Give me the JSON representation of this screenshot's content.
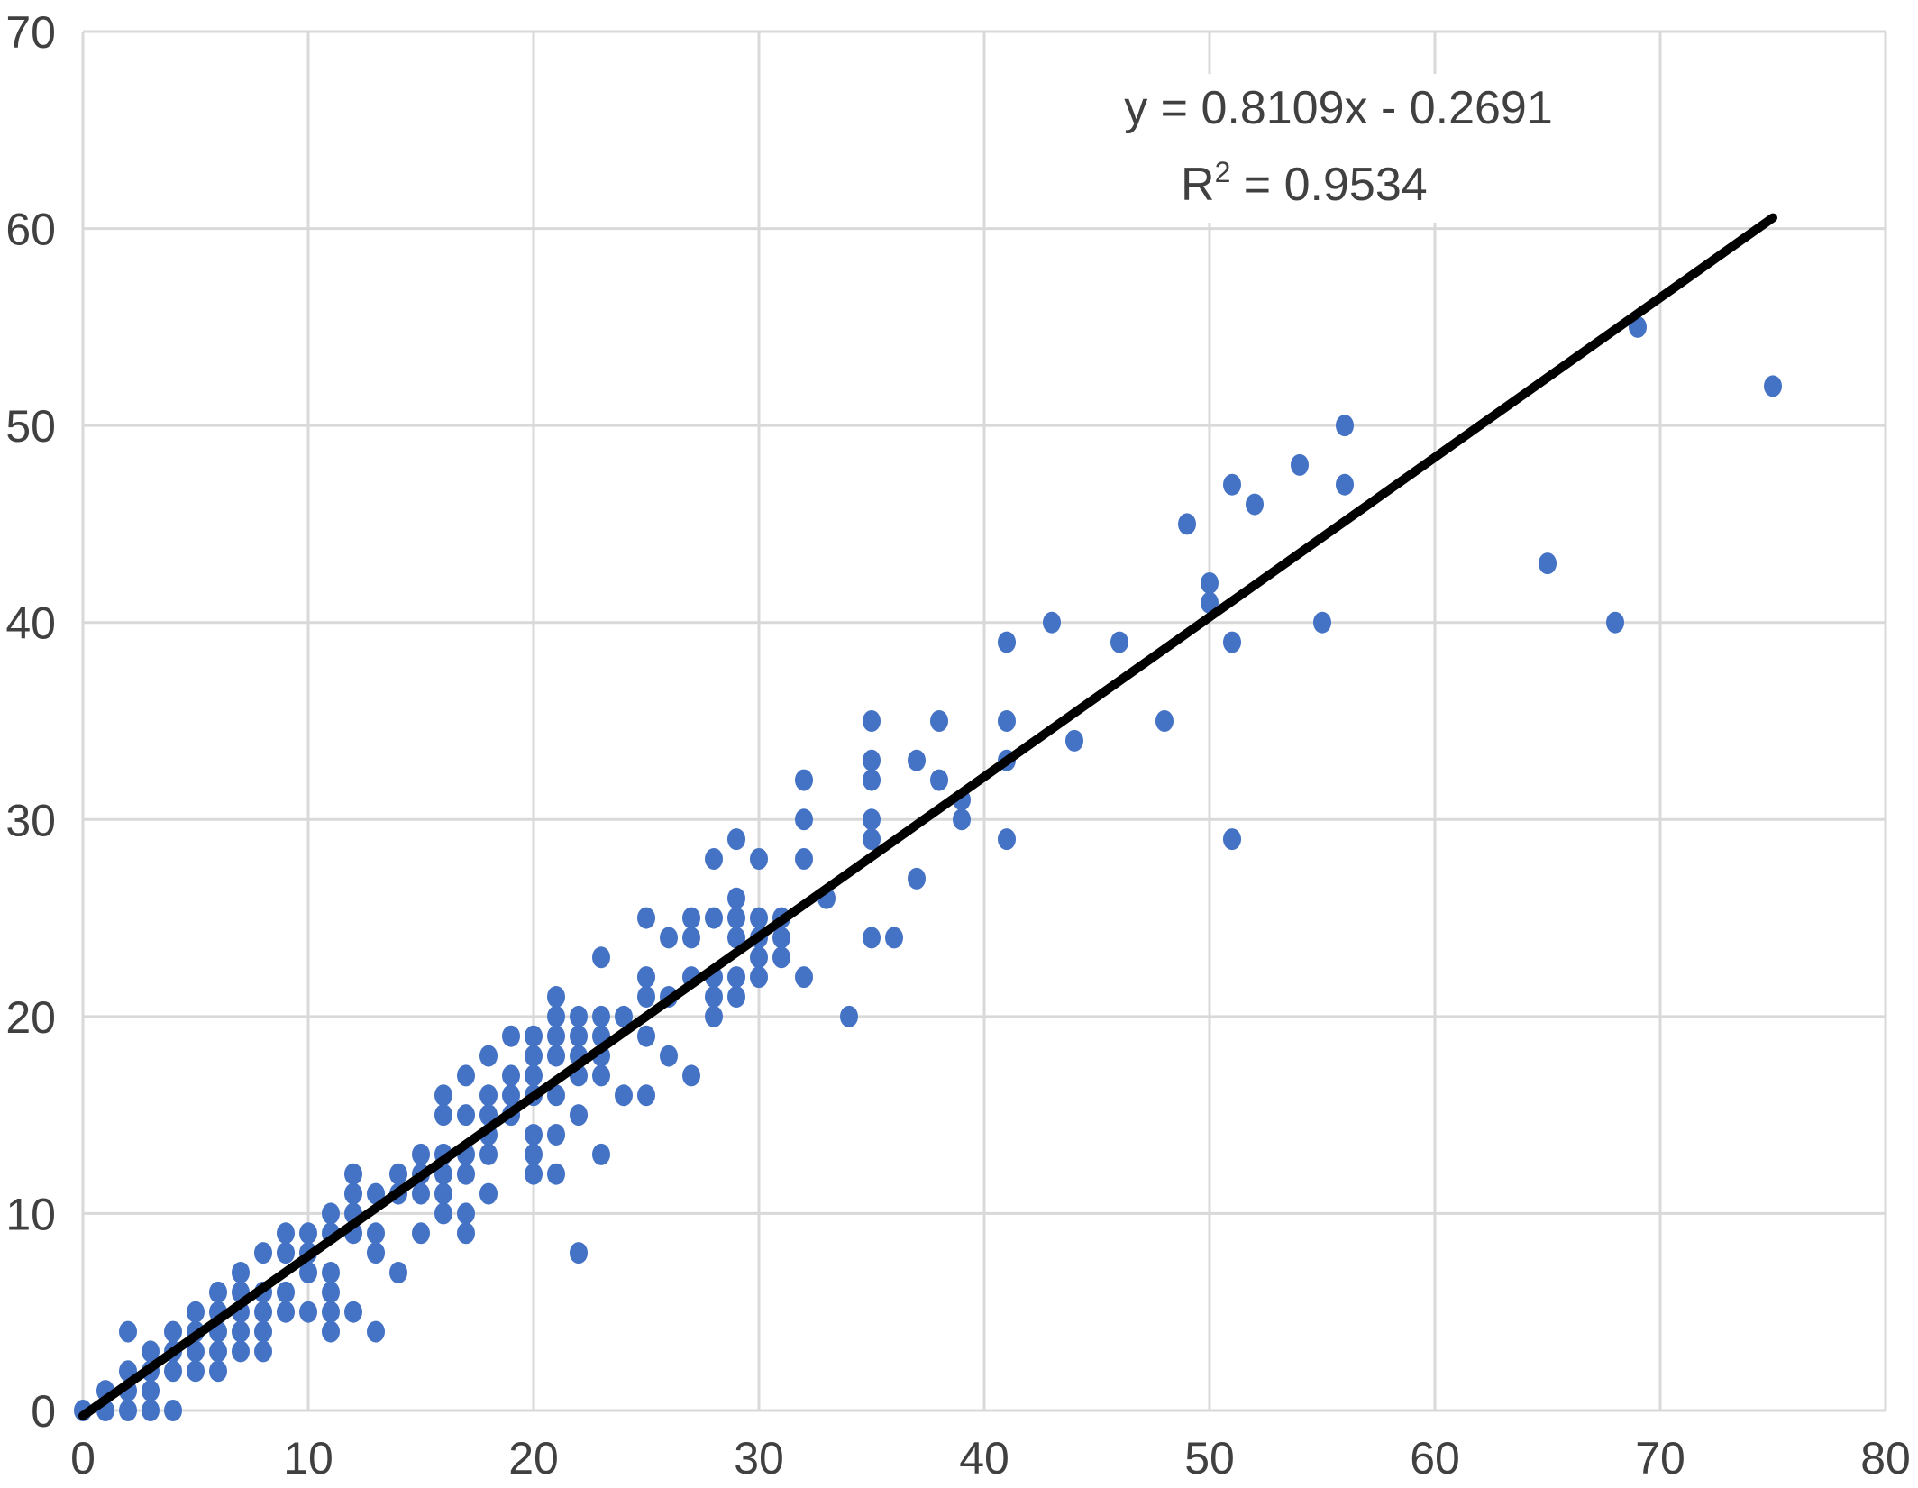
{
  "chart_data": {
    "type": "scatter",
    "xlim": [
      0,
      80
    ],
    "ylim": [
      0,
      70
    ],
    "x_ticks": [
      0,
      10,
      20,
      30,
      40,
      50,
      60,
      70,
      80
    ],
    "y_ticks": [
      0,
      10,
      20,
      30,
      40,
      50,
      60,
      70
    ],
    "grid": true,
    "legend": "none",
    "point_color": "#4472c4",
    "line_color": "#000000",
    "trendline": {
      "slope": 0.8109,
      "intercept": -0.2691,
      "x_range": [
        0,
        75
      ],
      "equation": "y = 0.8109x - 0.2691",
      "r_squared_prefix": "R",
      "r_squared_sup": "2",
      "r_squared_value": " = 0.9534"
    },
    "points": [
      [
        0,
        0
      ],
      [
        1,
        0
      ],
      [
        1,
        1
      ],
      [
        2,
        0
      ],
      [
        2,
        1
      ],
      [
        2,
        2
      ],
      [
        2,
        4
      ],
      [
        3,
        0
      ],
      [
        3,
        1
      ],
      [
        3,
        2
      ],
      [
        3,
        3
      ],
      [
        4,
        0
      ],
      [
        4,
        2
      ],
      [
        4,
        3
      ],
      [
        4,
        4
      ],
      [
        5,
        2
      ],
      [
        5,
        3
      ],
      [
        5,
        4
      ],
      [
        5,
        5
      ],
      [
        6,
        2
      ],
      [
        6,
        3
      ],
      [
        6,
        4
      ],
      [
        6,
        5
      ],
      [
        6,
        6
      ],
      [
        7,
        3
      ],
      [
        7,
        4
      ],
      [
        7,
        5
      ],
      [
        7,
        6
      ],
      [
        7,
        7
      ],
      [
        8,
        3
      ],
      [
        8,
        4
      ],
      [
        8,
        5
      ],
      [
        8,
        6
      ],
      [
        8,
        8
      ],
      [
        9,
        5
      ],
      [
        9,
        6
      ],
      [
        9,
        8
      ],
      [
        9,
        9
      ],
      [
        10,
        5
      ],
      [
        10,
        7
      ],
      [
        10,
        8
      ],
      [
        10,
        9
      ],
      [
        11,
        4
      ],
      [
        11,
        5
      ],
      [
        11,
        6
      ],
      [
        11,
        7
      ],
      [
        11,
        9
      ],
      [
        11,
        10
      ],
      [
        12,
        5
      ],
      [
        12,
        9
      ],
      [
        12,
        10
      ],
      [
        12,
        11
      ],
      [
        12,
        12
      ],
      [
        13,
        4
      ],
      [
        13,
        8
      ],
      [
        13,
        9
      ],
      [
        13,
        11
      ],
      [
        14,
        7
      ],
      [
        14,
        11
      ],
      [
        14,
        12
      ],
      [
        15,
        9
      ],
      [
        15,
        11
      ],
      [
        15,
        12
      ],
      [
        15,
        13
      ],
      [
        16,
        10
      ],
      [
        16,
        11
      ],
      [
        16,
        12
      ],
      [
        16,
        13
      ],
      [
        16,
        15
      ],
      [
        16,
        16
      ],
      [
        17,
        9
      ],
      [
        17,
        10
      ],
      [
        17,
        12
      ],
      [
        17,
        13
      ],
      [
        17,
        15
      ],
      [
        17,
        17
      ],
      [
        18,
        11
      ],
      [
        18,
        13
      ],
      [
        18,
        14
      ],
      [
        18,
        15
      ],
      [
        18,
        16
      ],
      [
        18,
        18
      ],
      [
        19,
        15
      ],
      [
        19,
        16
      ],
      [
        19,
        17
      ],
      [
        19,
        19
      ],
      [
        20,
        12
      ],
      [
        20,
        13
      ],
      [
        20,
        14
      ],
      [
        20,
        16
      ],
      [
        20,
        17
      ],
      [
        20,
        18
      ],
      [
        20,
        19
      ],
      [
        21,
        12
      ],
      [
        21,
        14
      ],
      [
        21,
        16
      ],
      [
        21,
        18
      ],
      [
        21,
        19
      ],
      [
        21,
        20
      ],
      [
        21,
        21
      ],
      [
        22,
        8
      ],
      [
        22,
        15
      ],
      [
        22,
        17
      ],
      [
        22,
        18
      ],
      [
        22,
        19
      ],
      [
        22,
        20
      ],
      [
        23,
        13
      ],
      [
        23,
        17
      ],
      [
        23,
        18
      ],
      [
        23,
        19
      ],
      [
        23,
        20
      ],
      [
        23,
        23
      ],
      [
        24,
        16
      ],
      [
        24,
        20
      ],
      [
        25,
        16
      ],
      [
        25,
        19
      ],
      [
        25,
        21
      ],
      [
        25,
        22
      ],
      [
        25,
        25
      ],
      [
        26,
        18
      ],
      [
        26,
        21
      ],
      [
        26,
        24
      ],
      [
        27,
        17
      ],
      [
        27,
        22
      ],
      [
        27,
        24
      ],
      [
        27,
        25
      ],
      [
        28,
        20
      ],
      [
        28,
        21
      ],
      [
        28,
        22
      ],
      [
        28,
        25
      ],
      [
        28,
        28
      ],
      [
        29,
        21
      ],
      [
        29,
        22
      ],
      [
        29,
        24
      ],
      [
        29,
        25
      ],
      [
        29,
        26
      ],
      [
        29,
        29
      ],
      [
        30,
        22
      ],
      [
        30,
        23
      ],
      [
        30,
        24
      ],
      [
        30,
        25
      ],
      [
        30,
        28
      ],
      [
        31,
        23
      ],
      [
        31,
        24
      ],
      [
        31,
        25
      ],
      [
        32,
        22
      ],
      [
        32,
        28
      ],
      [
        32,
        30
      ],
      [
        32,
        32
      ],
      [
        33,
        26
      ],
      [
        34,
        20
      ],
      [
        35,
        24
      ],
      [
        35,
        29
      ],
      [
        35,
        30
      ],
      [
        35,
        32
      ],
      [
        35,
        33
      ],
      [
        35,
        35
      ],
      [
        36,
        24
      ],
      [
        37,
        27
      ],
      [
        37,
        33
      ],
      [
        38,
        32
      ],
      [
        38,
        35
      ],
      [
        39,
        30
      ],
      [
        39,
        31
      ],
      [
        41,
        29
      ],
      [
        41,
        33
      ],
      [
        41,
        35
      ],
      [
        41,
        39
      ],
      [
        43,
        40
      ],
      [
        44,
        34
      ],
      [
        46,
        39
      ],
      [
        48,
        35
      ],
      [
        49,
        45
      ],
      [
        50,
        41
      ],
      [
        50,
        42
      ],
      [
        51,
        29
      ],
      [
        51,
        39
      ],
      [
        51,
        47
      ],
      [
        52,
        46
      ],
      [
        54,
        48
      ],
      [
        55,
        40
      ],
      [
        56,
        47
      ],
      [
        56,
        50
      ],
      [
        65,
        43
      ],
      [
        68,
        40
      ],
      [
        69,
        55
      ],
      [
        75,
        52
      ]
    ]
  }
}
